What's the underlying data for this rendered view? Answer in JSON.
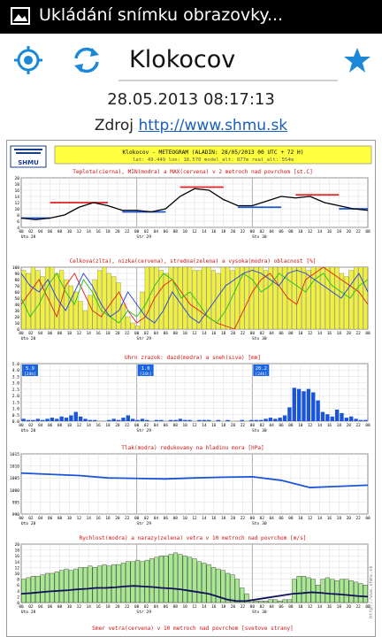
{
  "statusbar": {
    "title": "Ukládání snímku obrazovky...",
    "icon": "image-icon"
  },
  "toolbar": {
    "location_icon": "target-icon",
    "refresh_icon": "refresh-icon",
    "location": "Klokocov",
    "favorite_icon": "star-icon"
  },
  "datetime": "28.05.2013 08:17:13",
  "source": {
    "label": "Zdroj",
    "link": "http://www.shmu.sk"
  },
  "meteogram": {
    "logo_text": "SHMU",
    "header_line1": "Klokocov - METEOGRAM (ALADIN: 28/05/2013 00 UTC + 72 H)",
    "header_line2": "lat: 49.449   lon: 18.570   model_alt: 877m   real_alt: 554m",
    "side_text": "http://www.shmu.sk",
    "hours": [
      "00",
      "02",
      "04",
      "06",
      "08",
      "10",
      "12",
      "14",
      "16",
      "18",
      "20",
      "22",
      "00",
      "02",
      "04",
      "06",
      "08",
      "10",
      "12",
      "14",
      "16",
      "18",
      "20",
      "22",
      "00",
      "02",
      "04",
      "06",
      "08",
      "10",
      "12",
      "14",
      "16",
      "18",
      "20",
      "22",
      "00"
    ],
    "days": [
      "Uto 28",
      "Str 29",
      "Stv 30"
    ],
    "panels": [
      {
        "title": "Teplota(cierna), MIN(modra) a MAX(cervena) v 2 metroch nad povrchom [st.C]",
        "yticks": [
          "4",
          "6",
          "8",
          "10",
          "12",
          "14",
          "16",
          "18",
          "20"
        ],
        "ylim": [
          4,
          20
        ]
      },
      {
        "title": "Celkova(zlta), nizka(cervena), stredna(zelena) a vysoka(modra) oblacnost [%]",
        "yticks": [
          "0",
          "10",
          "20",
          "30",
          "40",
          "50",
          "60",
          "70",
          "80",
          "90",
          "100"
        ],
        "ylim": [
          0,
          100
        ]
      },
      {
        "title": "Uhrn zrazok: dazd(modra) a sneh(siva) [mm]",
        "yticks": [
          "0.0",
          "0.5",
          "1.0",
          "1.5",
          "2.0",
          "2.5",
          "3.0",
          "3.5",
          "4.0",
          "5.0"
        ],
        "ylim": [
          0,
          5
        ],
        "totals": [
          {
            "value": "5.9",
            "unit": "[24h]"
          },
          {
            "value": "1.0",
            "unit": "[24h]"
          },
          {
            "value": "20.2",
            "unit": "[24h]"
          }
        ]
      },
      {
        "title": "Tlak(modra) redukovany na hladinu mora [hPa]",
        "yticks": [
          "990",
          "995",
          "1000",
          "1005",
          "1010",
          "1015"
        ],
        "ylim": [
          990,
          1015
        ]
      },
      {
        "title": "Rychlost(modra) a narazy(zelena) vetra v 10 metroch nad povrchom [m/s]",
        "yticks": [
          "0",
          "2",
          "4",
          "6",
          "8",
          "10",
          "12",
          "14",
          "16",
          "18",
          "20"
        ],
        "ylim": [
          0,
          20
        ]
      },
      {
        "title": "Smer vetra(cervena) v 10 metroch nad povrchom [svetove strany]"
      }
    ]
  },
  "chart_data": [
    {
      "type": "line",
      "title": "Teplota(cierna), MIN(modra) a MAX(cervena) v 2 metroch nad povrchom [st.C]",
      "ylim": [
        4,
        20
      ],
      "x_hours": [
        0,
        3,
        6,
        9,
        12,
        15,
        18,
        21,
        24,
        27,
        30,
        33,
        36,
        39,
        42,
        45,
        48,
        51,
        54,
        57,
        60,
        63,
        66,
        69,
        72
      ],
      "series": [
        {
          "name": "Teplota",
          "color": "#000000",
          "values": [
            7,
            6.5,
            7,
            8,
            10.5,
            12,
            11,
            9.5,
            9.5,
            9,
            10,
            14,
            16.5,
            16,
            13,
            11,
            11,
            12.5,
            14,
            13.5,
            14,
            12,
            11,
            10,
            9.5
          ]
        }
      ],
      "min_segments": [
        {
          "from": 0,
          "to": 6,
          "value": 7
        },
        {
          "from": 21,
          "to": 30,
          "value": 9
        },
        {
          "from": 45,
          "to": 54,
          "value": 10.5
        },
        {
          "from": 66,
          "to": 72,
          "value": 10
        }
      ],
      "max_segments": [
        {
          "from": 6,
          "to": 18,
          "value": 12
        },
        {
          "from": 33,
          "to": 42,
          "value": 17
        },
        {
          "from": 57,
          "to": 66,
          "value": 14.5
        }
      ]
    },
    {
      "type": "bar",
      "title": "Celkova(zlta), nizka(cervena), stredna(zelena) a vysoka(modra) oblacnost [%]",
      "ylim": [
        0,
        100
      ],
      "total_cloud": [
        95,
        90,
        100,
        95,
        85,
        100,
        100,
        90,
        95,
        80,
        70,
        60,
        45,
        30,
        55,
        80,
        95,
        100,
        90,
        85,
        75,
        40,
        20,
        10,
        5,
        60,
        100,
        100,
        100,
        95,
        90,
        100,
        100,
        100,
        100,
        100,
        95,
        95,
        100,
        100,
        95,
        90,
        100,
        100,
        95,
        100,
        100,
        100,
        100,
        100,
        100,
        95,
        100,
        100,
        100,
        100,
        100,
        100,
        100,
        100,
        95,
        100,
        100,
        100,
        100,
        100,
        100,
        90,
        85,
        95,
        100,
        100,
        100
      ],
      "series": [
        {
          "name": "nizka",
          "color": "#e02020",
          "values": [
            40,
            60,
            80,
            50,
            20,
            70,
            90,
            60,
            30,
            20,
            40,
            60,
            30,
            10,
            20,
            50,
            70,
            80,
            60,
            40,
            30,
            20,
            10,
            5,
            0,
            30,
            60,
            80,
            90,
            70,
            50,
            40,
            80,
            90,
            100,
            90,
            80,
            70,
            60,
            40
          ]
        },
        {
          "name": "stredna",
          "color": "#20c020",
          "values": [
            50,
            20,
            40,
            70,
            90,
            60,
            40,
            80,
            60,
            30,
            20,
            10,
            30,
            20,
            40,
            70,
            90,
            80,
            50,
            60,
            40,
            20,
            10,
            30,
            60,
            90,
            80,
            60,
            70,
            90,
            80,
            70,
            60,
            80,
            90,
            70,
            60,
            50,
            70,
            80
          ]
        },
        {
          "name": "vysoka",
          "color": "#2040e0",
          "values": [
            90,
            70,
            60,
            80,
            50,
            30,
            60,
            90,
            70,
            40,
            20,
            30,
            60,
            40,
            20,
            10,
            30,
            60,
            40,
            20,
            10,
            30,
            50,
            70,
            80,
            90,
            95,
            90,
            80,
            70,
            90,
            95,
            90,
            80,
            70,
            60,
            50,
            70,
            90,
            60
          ]
        }
      ]
    },
    {
      "type": "bar",
      "title": "Uhrn zrazok: dazd(modra) a sneh(siva) [mm]",
      "ylim": [
        0,
        5
      ],
      "series": [
        {
          "name": "dazd",
          "color": "#1a55d8",
          "values": [
            0.2,
            0.1,
            0.1,
            0.2,
            0.1,
            0.2,
            0.3,
            0.2,
            0.4,
            0.3,
            0.5,
            0.8,
            0.4,
            0.2,
            0.1,
            0.1,
            0,
            0,
            0.1,
            0.2,
            0.1,
            0.3,
            0.5,
            0.2,
            0.1,
            0.2,
            0.1,
            0,
            0.1,
            0.1,
            0,
            0.1,
            0.1,
            0.2,
            0.1,
            0.1,
            0,
            0.1,
            0.1,
            0.1,
            0,
            0.1,
            0,
            0.1,
            0,
            0,
            0.1,
            0,
            0.1,
            0.1,
            0.1,
            0.2,
            0.3,
            0.2,
            0.3,
            0.5,
            1.2,
            2.9,
            2.8,
            2.6,
            2.8,
            2.5,
            1.8,
            0.8,
            0.6,
            0.4,
            1.0,
            0.7,
            0.3,
            0.4,
            0.2,
            0.1,
            0.1
          ]
        }
      ]
    },
    {
      "type": "line",
      "title": "Tlak(modra) redukovany na hladinu mora [hPa]",
      "ylim": [
        990,
        1015
      ],
      "x_hours": [
        0,
        6,
        12,
        18,
        24,
        30,
        36,
        42,
        48,
        54,
        60,
        66,
        72
      ],
      "series": [
        {
          "name": "Tlak",
          "color": "#1a55d8",
          "values": [
            1007,
            1006.5,
            1006,
            1005,
            1004.8,
            1004.6,
            1005,
            1005.3,
            1005.5,
            1004,
            1001,
            1001.5,
            1002
          ]
        }
      ]
    },
    {
      "type": "bar",
      "title": "Rychlost(modra) a narazy(zelena) vetra v 10 metroch nad povrchom [m/s]",
      "ylim": [
        0,
        20
      ],
      "gusts": [
        8,
        8.5,
        9,
        9,
        9.5,
        10,
        10,
        10.5,
        11,
        11.5,
        11,
        11.5,
        12,
        12,
        12.5,
        12,
        12.5,
        13,
        12.5,
        13,
        13,
        13.5,
        14,
        14,
        14.5,
        14,
        14.5,
        15,
        15.5,
        16,
        16,
        16.5,
        17,
        16.5,
        16,
        15.5,
        15,
        14,
        13.5,
        13,
        12,
        11.5,
        11,
        10,
        9.5,
        8,
        5,
        3,
        1,
        0.5,
        0.5,
        0.5,
        1,
        1,
        0.5,
        1,
        1,
        8,
        9,
        9,
        8.5,
        8,
        6,
        8,
        8.5,
        8,
        7.5,
        8,
        8,
        7.5,
        7,
        6.5,
        6
      ],
      "series": [
        {
          "name": "Rychlost",
          "color": "#10105a",
          "values": [
            3,
            3.2,
            3.5,
            3.8,
            4,
            4.2,
            4.5,
            4.7,
            5,
            5,
            5.2,
            5.5,
            5.7,
            5.5,
            5.3,
            5,
            4.8,
            4.5,
            4,
            3.5,
            3,
            2,
            1,
            0.5,
            0.5,
            1,
            1.5,
            2,
            2.5,
            3,
            3.2,
            3.5,
            3.3,
            3,
            2.8,
            2.5,
            2.2,
            2
          ]
        }
      ]
    }
  ]
}
